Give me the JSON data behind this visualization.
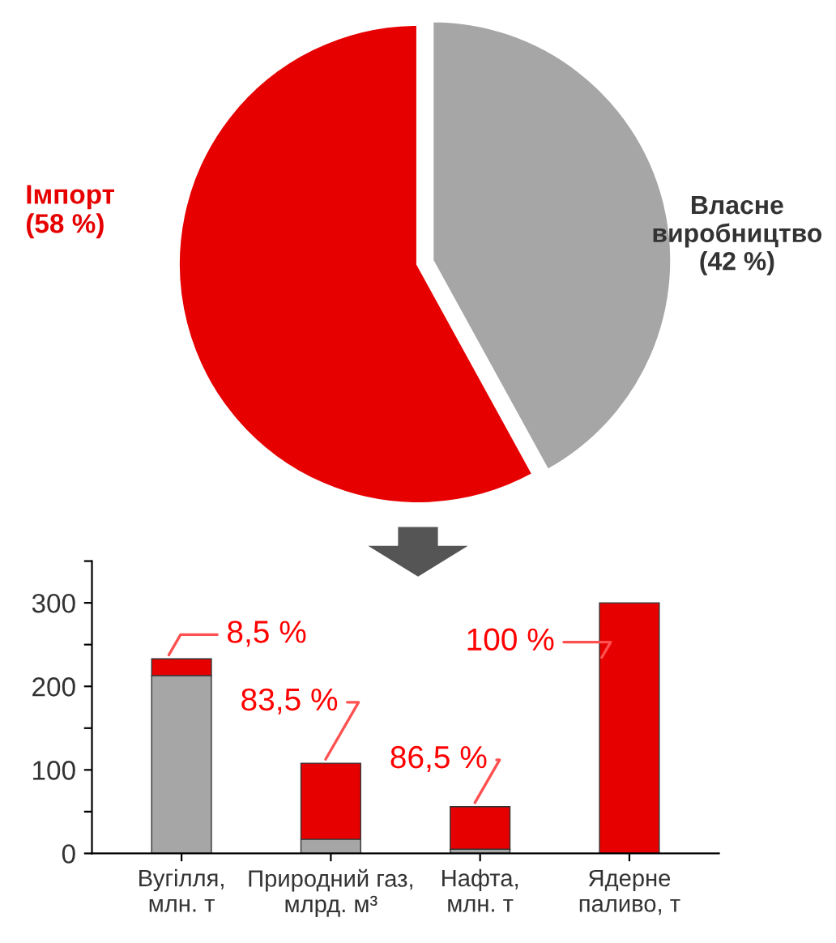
{
  "chart_data": [
    {
      "type": "pie",
      "categories": [
        "Імпорт",
        "Власне виробництво"
      ],
      "values": [
        58,
        42
      ],
      "colors": [
        "#e60000",
        "#a6a6a6"
      ],
      "value_labels": [
        "(58 %)",
        "(42 %)"
      ]
    },
    {
      "type": "bar",
      "stacked": true,
      "categories": [
        "Вугілля,\nмлн. т",
        "Природний газ,\nмлрд. м³",
        "Нафта,\nмлн. т",
        "Ядерне\nпаливо, т"
      ],
      "series": [
        {
          "color": "#a6a6a6",
          "values": [
            213,
            17,
            5,
            0
          ]
        },
        {
          "color": "#e60000",
          "values": [
            20,
            91,
            51,
            300
          ]
        }
      ],
      "annotations": [
        {
          "text": "8,5 %",
          "x": "Вугілля,\nмлн. т",
          "y": 233
        },
        {
          "text": "83,5 %",
          "x": "Природний газ,\nмлрд. м³",
          "y": 108
        },
        {
          "text": "86,5 %",
          "x": "Нафта,\nмлн. т",
          "y": 56
        },
        {
          "text": "100 %",
          "x": "Ядерне\nпаливо, т",
          "y": 300
        }
      ],
      "ylim": [
        0,
        350
      ],
      "yticks": [
        0,
        {
          "value": 50,
          "label": null
        },
        100,
        {
          "value": 150,
          "label": null
        },
        200,
        {
          "value": 250,
          "label": null
        },
        300,
        {
          "value": 350,
          "label": null
        }
      ],
      "grid": false,
      "legend": false
    }
  ]
}
